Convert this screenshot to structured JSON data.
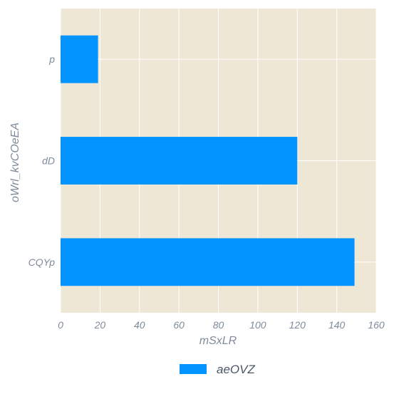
{
  "chart_data": {
    "type": "bar",
    "orientation": "horizontal",
    "categories": [
      "p",
      "dD",
      "CQYp"
    ],
    "series": [
      {
        "name": "aeOVZ",
        "values": [
          19,
          120,
          149
        ]
      }
    ],
    "xlabel": "mSxLR",
    "ylabel": "oWrl_kvCOeEA",
    "xlim": [
      0,
      160
    ],
    "xticks": [
      "0",
      "20",
      "40",
      "60",
      "80",
      "100",
      "120",
      "140",
      "160"
    ],
    "grid": true,
    "legend_position": "bottom-center",
    "colors": {
      "bar": "#0394ff",
      "plot_background": "#efe7d6",
      "grid": "#ffffff",
      "text": "#7f8b9b"
    }
  }
}
